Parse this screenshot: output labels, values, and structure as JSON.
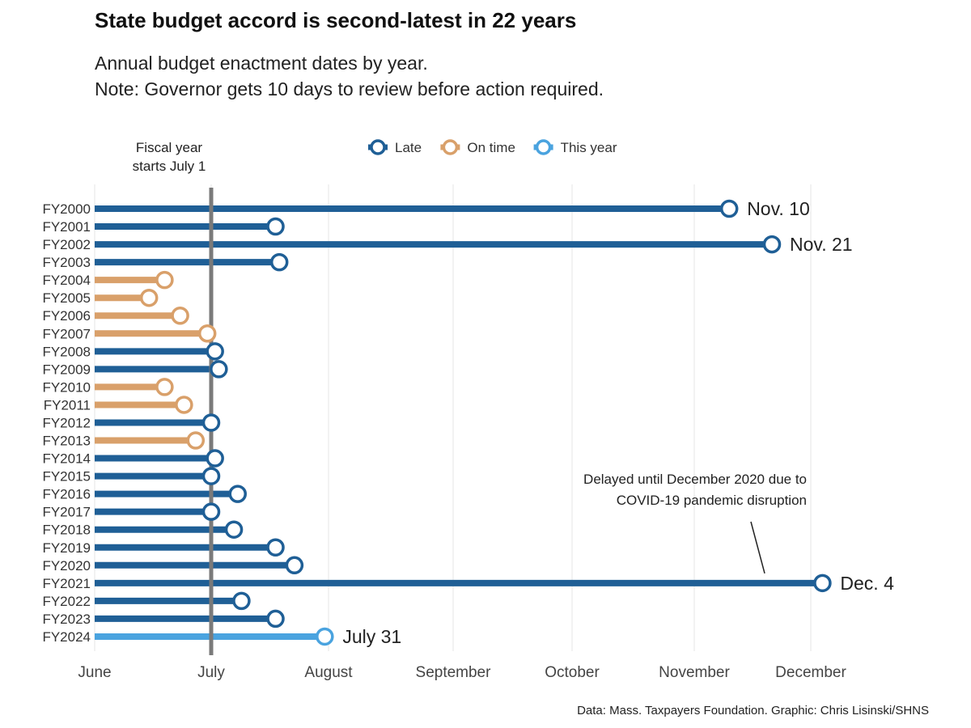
{
  "title": "State budget accord is second-latest in 22 years",
  "subtitle_lines": [
    "Annual budget enactment dates by year.",
    "Note: Governor gets 10 days to review before action required."
  ],
  "source": "Data: Mass. Taxpayers Foundation. Graphic: Chris Lisinski/SHNS",
  "chart_data": {
    "type": "lollipop",
    "title": "State budget accord is second-latest in 22 years",
    "x_axis": {
      "type": "date (month-day)",
      "range": [
        "06-01",
        "12-10"
      ],
      "ticks": [
        "June",
        "July",
        "August",
        "September",
        "October",
        "November",
        "December"
      ],
      "grid": true
    },
    "legend": {
      "placement": "top",
      "entries": [
        {
          "key": "late",
          "label": "Late",
          "color": "#1f5f96"
        },
        {
          "key": "ontime",
          "label": "On time",
          "color": "#d9a06a"
        },
        {
          "key": "thisyear",
          "label": "This year",
          "color": "#4aa3df"
        }
      ]
    },
    "reference_line": {
      "date": "07-01",
      "label_lines": [
        "Fiscal year",
        "starts July 1"
      ],
      "color": "#7a7a7a"
    },
    "annotation": {
      "target": "FY2021",
      "lines": [
        "Delayed until December 2020 due to",
        "COVID-19 pandemic disruption"
      ]
    },
    "series": [
      {
        "fy": "FY2000",
        "date": "11-10",
        "status": "late",
        "label": "Nov. 10"
      },
      {
        "fy": "FY2001",
        "date": "07-18",
        "status": "late"
      },
      {
        "fy": "FY2002",
        "date": "11-21",
        "status": "late",
        "label": "Nov. 21"
      },
      {
        "fy": "FY2003",
        "date": "07-19",
        "status": "late"
      },
      {
        "fy": "FY2004",
        "date": "06-19",
        "status": "ontime"
      },
      {
        "fy": "FY2005",
        "date": "06-15",
        "status": "ontime"
      },
      {
        "fy": "FY2006",
        "date": "06-23",
        "status": "ontime"
      },
      {
        "fy": "FY2007",
        "date": "06-30",
        "status": "ontime"
      },
      {
        "fy": "FY2008",
        "date": "07-02",
        "status": "late"
      },
      {
        "fy": "FY2009",
        "date": "07-03",
        "status": "late"
      },
      {
        "fy": "FY2010",
        "date": "06-19",
        "status": "ontime"
      },
      {
        "fy": "FY2011",
        "date": "06-24",
        "status": "ontime"
      },
      {
        "fy": "FY2012",
        "date": "07-01",
        "status": "late"
      },
      {
        "fy": "FY2013",
        "date": "06-27",
        "status": "ontime"
      },
      {
        "fy": "FY2014",
        "date": "07-02",
        "status": "late"
      },
      {
        "fy": "FY2015",
        "date": "07-01",
        "status": "late"
      },
      {
        "fy": "FY2016",
        "date": "07-08",
        "status": "late"
      },
      {
        "fy": "FY2017",
        "date": "07-01",
        "status": "late"
      },
      {
        "fy": "FY2018",
        "date": "07-07",
        "status": "late"
      },
      {
        "fy": "FY2019",
        "date": "07-18",
        "status": "late"
      },
      {
        "fy": "FY2020",
        "date": "07-23",
        "status": "late"
      },
      {
        "fy": "FY2021",
        "date": "12-04",
        "status": "late",
        "label": "Dec. 4"
      },
      {
        "fy": "FY2022",
        "date": "07-09",
        "status": "late"
      },
      {
        "fy": "FY2023",
        "date": "07-18",
        "status": "late"
      },
      {
        "fy": "FY2024",
        "date": "07-31",
        "status": "thisyear",
        "label": "July 31"
      }
    ]
  }
}
